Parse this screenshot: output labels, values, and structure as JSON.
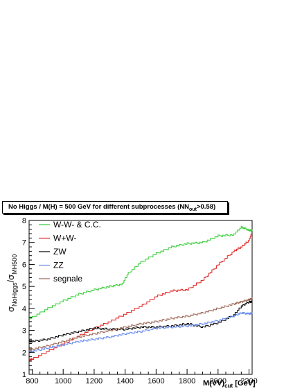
{
  "title": {
    "main": "No Higgs / M(H) = 500 GeV for different subprocesses (NN",
    "sub": "out",
    "tail": ">0.58)"
  },
  "axes": {
    "ylabel_sigma1": "σ",
    "ylabel_sub1": "NoHiggs",
    "ylabel_slash": "/σ",
    "ylabel_sub2": "MH500",
    "xlabel_main": "M(VV)",
    "xlabel_sub": "cut",
    "xlabel_unit": " [GeV]"
  },
  "chart_data": {
    "type": "line",
    "xlim": [
      780,
      2220
    ],
    "ylim": [
      1,
      8
    ],
    "xticks": [
      800,
      1000,
      1200,
      1400,
      1600,
      1800,
      2000,
      2200
    ],
    "yticks": [
      1,
      2,
      3,
      4,
      5,
      6,
      7,
      8
    ],
    "legend_position": "top-left",
    "series": [
      {
        "name": "W-W- & C.C.",
        "color": "#33cc33",
        "x": [
          780,
          800,
          900,
          1000,
          1100,
          1200,
          1300,
          1380,
          1420,
          1500,
          1600,
          1700,
          1800,
          1900,
          2000,
          2100,
          2150,
          2200,
          2220
        ],
        "y": [
          3.55,
          3.6,
          4.0,
          4.35,
          4.65,
          4.85,
          5.0,
          5.1,
          5.6,
          6.1,
          6.5,
          6.8,
          6.95,
          7.0,
          7.3,
          7.35,
          7.7,
          7.55,
          7.55
        ]
      },
      {
        "name": "W+W-",
        "color": "#dd2222",
        "x": [
          780,
          800,
          900,
          1000,
          1100,
          1200,
          1300,
          1400,
          1500,
          1600,
          1700,
          1800,
          1900,
          2000,
          2100,
          2150,
          2200,
          2220
        ],
        "y": [
          1.65,
          1.7,
          2.05,
          2.4,
          2.75,
          3.1,
          3.4,
          3.75,
          4.1,
          4.55,
          4.8,
          4.85,
          5.3,
          6.0,
          6.6,
          6.8,
          7.1,
          7.5
        ]
      },
      {
        "name": "ZW",
        "color": "#000000",
        "x": [
          780,
          800,
          900,
          1000,
          1100,
          1200,
          1300,
          1400,
          1500,
          1600,
          1700,
          1800,
          1900,
          2000,
          2100,
          2150,
          2200,
          2220
        ],
        "y": [
          2.5,
          2.5,
          2.6,
          2.8,
          2.95,
          3.1,
          3.05,
          3.05,
          3.15,
          3.15,
          3.2,
          3.3,
          3.15,
          3.35,
          3.7,
          4.1,
          4.3,
          4.3
        ]
      },
      {
        "name": "ZZ",
        "color": "#6688ee",
        "x": [
          780,
          800,
          900,
          1000,
          1100,
          1200,
          1300,
          1400,
          1500,
          1600,
          1700,
          1800,
          1900,
          2000,
          2100,
          2150,
          2200,
          2220
        ],
        "y": [
          2.0,
          2.05,
          2.2,
          2.35,
          2.5,
          2.6,
          2.7,
          2.85,
          2.95,
          3.1,
          3.15,
          3.2,
          3.3,
          3.45,
          3.65,
          3.8,
          3.75,
          3.8
        ]
      },
      {
        "name": "segnale",
        "color": "#996655",
        "x": [
          780,
          800,
          900,
          1000,
          1100,
          1200,
          1300,
          1400,
          1500,
          1600,
          1700,
          1800,
          1900,
          2000,
          2100,
          2150,
          2200,
          2220
        ],
        "y": [
          2.1,
          2.15,
          2.3,
          2.5,
          2.7,
          2.85,
          3.0,
          3.15,
          3.3,
          3.4,
          3.55,
          3.65,
          3.8,
          4.0,
          4.2,
          4.3,
          4.4,
          4.45
        ]
      }
    ]
  }
}
